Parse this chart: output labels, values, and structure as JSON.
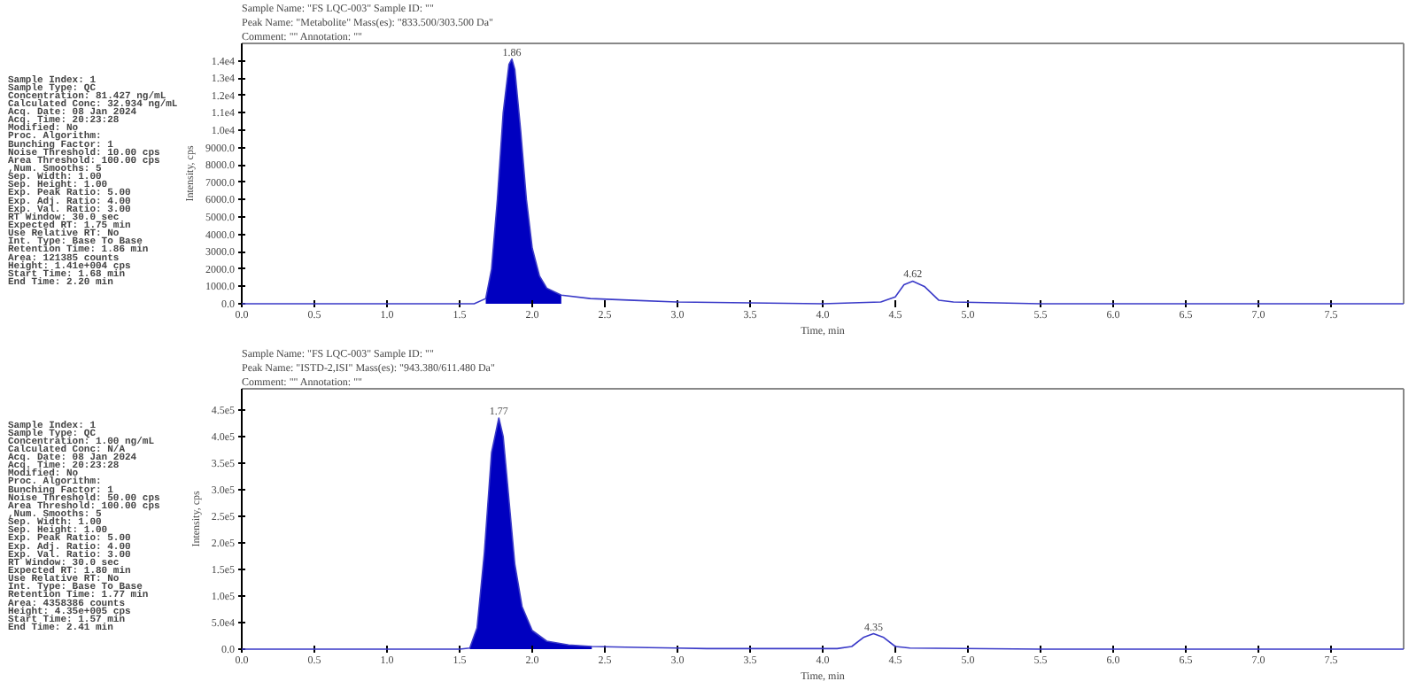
{
  "chart_data": [
    {
      "type": "other",
      "annotations": [
        "Sample Index:       1",
        "Sample Type:           QC",
        "Concentration:     81.427   ng/mL",
        "Calculated Conc:   32.934   ng/mL",
        "Acq. Date:        08 Jan 2024",
        "Acq. Time:        20:23:28",
        "Modified:           No",
        "Proc. Algorithm:",
        "Bunching Factor:    1",
        "Noise Threshold:   10.00   cps",
        "Area Threshold:   100.00   cps",
        ",Num. Smooths:       5",
        "Sep. Width:        1.00",
        "Sep. Height:       1.00",
        "Exp. Peak Ratio:   5.00",
        "Exp. Adj. Ratio:   4.00",
        "Exp. Val. Ratio:   3.00",
        "RT Window:          30.0    sec",
        "Expected RT:        1.75    min",
        "Use Relative RT:    No",
        "Int. Type:         Base To Base",
        "Retention Time:    1.86    min",
        "Area:            121385   counts",
        "Height:         1.41e+004   cps",
        "Start Time:        1.68    min",
        "End Time:          2.20    min"
      ]
    },
    {
      "type": "line",
      "title": "Sample Name: \"FS LQC-003\"   Sample ID: \"\"",
      "subtitle": "Peak Name: \"Metabolite\"   Mass(es): \"833.500/303.500 Da\"",
      "xlabel": "Time, min",
      "ylabel": "Intensity, cps",
      "xlim": [
        0,
        8
      ],
      "ylim": [
        0,
        15000
      ],
      "xticks": [
        {
          "value": 0,
          "label": "0.0"
        },
        {
          "value": 0.5,
          "label": "0.5"
        },
        {
          "value": 1,
          "label": "1.0"
        },
        {
          "value": 1.5,
          "label": "1.5"
        },
        {
          "value": 2,
          "label": "2.0"
        },
        {
          "value": 2.5,
          "label": "2.5"
        },
        {
          "value": 3,
          "label": "3.0"
        },
        {
          "value": 3.5,
          "label": "3.5"
        },
        {
          "value": 4,
          "label": "4.0"
        },
        {
          "value": 4.5,
          "label": "4.5"
        },
        {
          "value": 5,
          "label": "5.0"
        },
        {
          "value": 5.5,
          "label": "5.5"
        },
        {
          "value": 6,
          "label": "6.0"
        },
        {
          "value": 6.5,
          "label": "6.5"
        },
        {
          "value": 7,
          "label": "7.0"
        },
        {
          "value": 7.5,
          "label": "7.5"
        }
      ],
      "yticks": [
        {
          "value": 0,
          "label": "0.0"
        },
        {
          "value": 1000,
          "label": "1000.0"
        },
        {
          "value": 2000,
          "label": "2000.0"
        },
        {
          "value": 3000,
          "label": "3000.0"
        },
        {
          "value": 4000,
          "label": "4000.0"
        },
        {
          "value": 5000,
          "label": "5000.0"
        },
        {
          "value": 6000,
          "label": "6000.0"
        },
        {
          "value": 7000,
          "label": "7000.0"
        },
        {
          "value": 8000,
          "label": "8000.0"
        },
        {
          "value": 9000,
          "label": "9000.0"
        },
        {
          "value": 10000,
          "label": "1.0e4"
        },
        {
          "value": 11000,
          "label": "1.1e4"
        },
        {
          "value": 12000,
          "label": "1.2e4"
        },
        {
          "value": 13000,
          "label": "1.3e4"
        },
        {
          "value": 14000,
          "label": "1.4e4"
        }
      ],
      "grid": false,
      "marker": "none",
      "line_style": "solid",
      "series": [
        {
          "type": "area",
          "color": "#0000c0",
          "x": [
            1.68,
            1.72,
            1.76,
            1.8,
            1.84,
            1.86,
            1.88,
            1.92,
            1.96,
            2.0,
            2.05,
            2.1,
            2.2
          ],
          "values": [
            300,
            2000,
            6000,
            11000,
            13800,
            14100,
            13500,
            10000,
            6000,
            3200,
            1600,
            900,
            500
          ]
        },
        {
          "type": "line",
          "color": "#3a3ac8",
          "x": [
            0,
            1.0,
            1.6,
            1.68,
            1.72,
            1.76,
            1.8,
            1.84,
            1.86,
            1.88,
            1.92,
            1.96,
            2.0,
            2.05,
            2.1,
            2.2,
            2.4,
            2.7,
            3.0,
            4.0,
            4.4,
            4.5,
            4.56,
            4.62,
            4.7,
            4.8,
            4.9,
            5.5,
            8.0
          ],
          "values": [
            0,
            0,
            0,
            300,
            2000,
            6000,
            11000,
            13800,
            14100,
            13500,
            10000,
            6000,
            3200,
            1600,
            900,
            500,
            300,
            200,
            100,
            0,
            100,
            400,
            1100,
            1300,
            1000,
            200,
            100,
            0,
            0
          ]
        }
      ],
      "annotations": [
        "Comment: \"\"   Annotation: \"\"",
        {
          "text": "1.86",
          "x": 1.86,
          "y": 14100
        },
        {
          "text": "4.62",
          "x": 4.62,
          "y": 1350
        }
      ]
    },
    {
      "type": "other",
      "annotations": [
        "Sample Index:       1",
        "Sample Type:           QC",
        "Concentration:      1.00    ng/mL",
        "Calculated Conc:    N/A",
        "Acq. Date:        08 Jan 2024",
        "Acq. Time:        20:23:28",
        "Modified:           No",
        "Proc. Algorithm:",
        "Bunching Factor:    1",
        "Noise Threshold:   50.00   cps",
        "Area Threshold:   100.00   cps",
        ",Num. Smooths:       5",
        "Sep. Width:        1.00",
        "Sep. Height:       1.00",
        "Exp. Peak Ratio:   5.00",
        "Exp. Adj. Ratio:   4.00",
        "Exp. Val. Ratio:   3.00",
        "RT Window:          30.0    sec",
        "Expected RT:        1.80    min",
        "Use Relative RT:    No",
        "Int. Type:         Base To Base",
        "Retention Time:    1.77    min",
        "Area:           4358386   counts",
        "Height:         4.35e+005   cps",
        "Start Time:        1.57    min",
        "End Time:          2.41    min"
      ]
    },
    {
      "type": "line",
      "title": "Sample Name: \"FS LQC-003\"   Sample ID: \"\"",
      "subtitle": "Peak Name: \"ISTD-2,ISI\"   Mass(es): \"943.380/611.480 Da\"",
      "xlabel": "Time, min",
      "ylabel": "Intensity, cps",
      "xlim": [
        0,
        8
      ],
      "ylim": [
        0,
        490000
      ],
      "xticks": [
        {
          "value": 0,
          "label": "0.0"
        },
        {
          "value": 0.5,
          "label": "0.5"
        },
        {
          "value": 1,
          "label": "1.0"
        },
        {
          "value": 1.5,
          "label": "1.5"
        },
        {
          "value": 2,
          "label": "2.0"
        },
        {
          "value": 2.5,
          "label": "2.5"
        },
        {
          "value": 3,
          "label": "3.0"
        },
        {
          "value": 3.5,
          "label": "3.5"
        },
        {
          "value": 4,
          "label": "4.0"
        },
        {
          "value": 4.5,
          "label": "4.5"
        },
        {
          "value": 5,
          "label": "5.0"
        },
        {
          "value": 5.5,
          "label": "5.5"
        },
        {
          "value": 6,
          "label": "6.0"
        },
        {
          "value": 6.5,
          "label": "6.5"
        },
        {
          "value": 7,
          "label": "7.0"
        },
        {
          "value": 7.5,
          "label": "7.5"
        }
      ],
      "yticks": [
        {
          "value": 0,
          "label": "0.0"
        },
        {
          "value": 50000,
          "label": "5.0e4"
        },
        {
          "value": 100000,
          "label": "1.0e5"
        },
        {
          "value": 150000,
          "label": "1.5e5"
        },
        {
          "value": 200000,
          "label": "2.0e5"
        },
        {
          "value": 250000,
          "label": "2.5e5"
        },
        {
          "value": 300000,
          "label": "3.0e5"
        },
        {
          "value": 350000,
          "label": "3.5e5"
        },
        {
          "value": 400000,
          "label": "4.0e5"
        },
        {
          "value": 450000,
          "label": "4.5e5"
        }
      ],
      "grid": false,
      "marker": "none",
      "line_style": "solid",
      "series": [
        {
          "type": "area",
          "color": "#0000c0",
          "x": [
            1.57,
            1.62,
            1.67,
            1.72,
            1.77,
            1.8,
            1.84,
            1.88,
            1.93,
            2.0,
            2.1,
            2.25,
            2.41
          ],
          "values": [
            2000,
            40000,
            180000,
            370000,
            435000,
            400000,
            280000,
            160000,
            80000,
            35000,
            15000,
            8000,
            5000
          ]
        },
        {
          "type": "line",
          "color": "#3a3ac8",
          "x": [
            0,
            1.5,
            1.57,
            1.62,
            1.67,
            1.72,
            1.77,
            1.8,
            1.84,
            1.88,
            1.93,
            2.0,
            2.1,
            2.25,
            2.41,
            2.8,
            3.2,
            4.1,
            4.2,
            4.28,
            4.35,
            4.42,
            4.5,
            4.6,
            5.5,
            8.0
          ],
          "values": [
            0,
            0,
            2000,
            40000,
            180000,
            370000,
            435000,
            400000,
            280000,
            160000,
            80000,
            35000,
            15000,
            8000,
            5000,
            3000,
            1000,
            1000,
            5000,
            22000,
            29000,
            22000,
            5000,
            2000,
            0,
            0
          ]
        }
      ],
      "annotations": [
        "Comment: \"\"   Annotation: \"\"",
        {
          "text": "1.77",
          "x": 1.77,
          "y": 435000
        },
        {
          "text": "4.35",
          "x": 4.35,
          "y": 29000
        }
      ]
    }
  ]
}
